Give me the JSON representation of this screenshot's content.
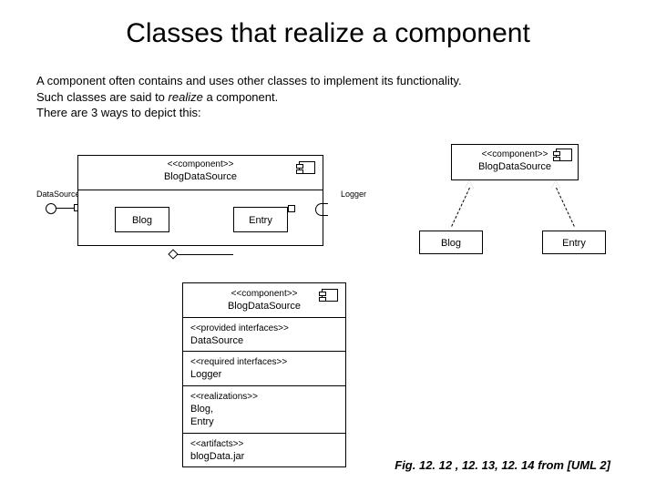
{
  "title": "Classes that realize a component",
  "intro": {
    "line1": "A component often contains and uses other classes to implement its functionality.",
    "line2a": "Such classes are said to ",
    "line2em": "realize",
    "line2b": " a component.",
    "line3": "There are 3 ways to depict this:"
  },
  "diagram1": {
    "stereotype": "<<component>>",
    "name": "BlogDataSource",
    "blog": "Blog",
    "entry": "Entry",
    "iface_left": "DataSource",
    "iface_right": "Logger",
    "styling": {
      "border_color": "#000000",
      "background": "#ffffff",
      "font_size_label": 11,
      "font_size_iface": 9
    }
  },
  "diagram2": {
    "stereotype": "<<component>>",
    "name": "BlogDataSource",
    "blog": "Blog",
    "entry": "Entry",
    "arrow_style": "dashed-realization",
    "styling": {
      "border_color": "#000000",
      "background": "#ffffff",
      "font_size": 11
    }
  },
  "diagram3": {
    "head_stereotype": "<<component>>",
    "head_name": "BlogDataSource",
    "rows": [
      {
        "stereo": "<<provided interfaces>>",
        "text": "DataSource"
      },
      {
        "stereo": "<<required interfaces>>",
        "text": "Logger"
      },
      {
        "stereo": "<<realizations>>",
        "text": "Blog,\nEntry"
      },
      {
        "stereo": "<<artifacts>>",
        "text": "blogData.jar"
      }
    ],
    "styling": {
      "border_color": "#000000",
      "background": "#ffffff",
      "font_size": 11,
      "stereo_font_size": 10
    }
  },
  "caption": "Fig. 12. 12 , 12. 13, 12. 14   from [UML 2]",
  "colors": {
    "page_background": "#ffffff",
    "text": "#000000",
    "border": "#000000"
  }
}
